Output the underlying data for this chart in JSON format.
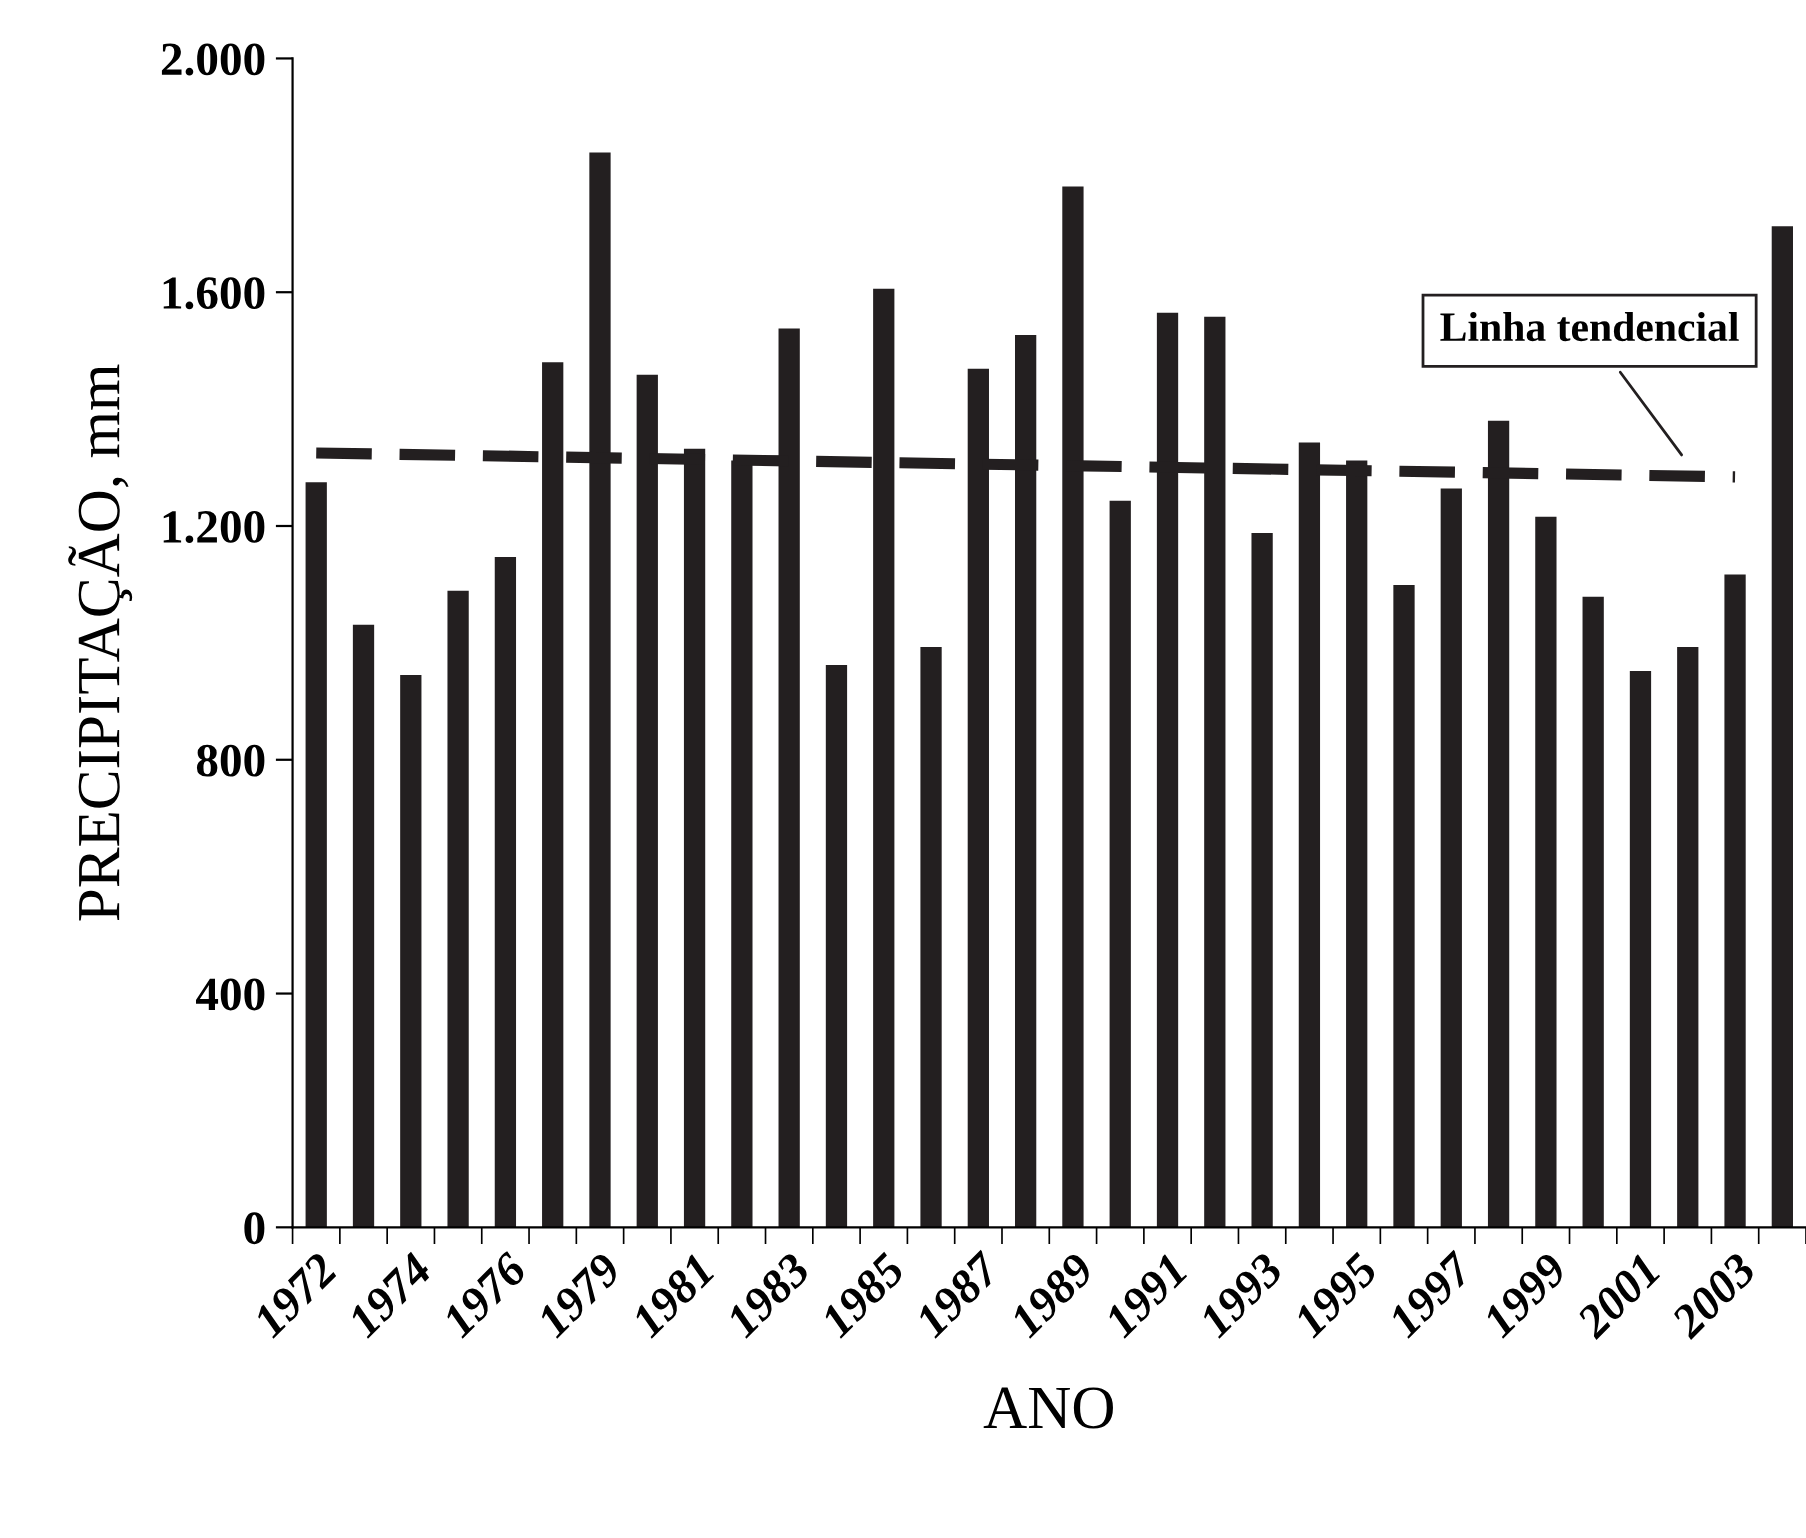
{
  "chart_data": {
    "type": "bar",
    "xlabel": "ANO",
    "ylabel": "PRECIPITAÇÃO, mm",
    "categories": [
      "1972",
      null,
      "1974",
      null,
      "1976",
      null,
      "1979",
      null,
      "1981",
      null,
      "1983",
      null,
      "1985",
      null,
      "1987",
      null,
      "1989",
      null,
      "1991",
      null,
      "1993",
      null,
      "1995",
      null,
      "1997",
      null,
      "1999",
      null,
      "2001",
      null,
      "2003",
      null
    ],
    "series": [
      {
        "color": "#231f20",
        "values": [
          1275,
          1031,
          945,
          1089,
          1147,
          1480,
          1839,
          1459,
          1332,
          1312,
          1538,
          962,
          1606,
          993,
          1469,
          1527,
          1781,
          1243,
          1565,
          1558,
          1188,
          1343,
          1312,
          1099,
          1264,
          1380,
          1216,
          1079,
          952,
          993,
          1117,
          1713
        ]
      },
      {
        "type": "line",
        "color": "#231f20",
        "line_style": "dashed",
        "values": [
          1325,
          null,
          null,
          null,
          null,
          null,
          null,
          null,
          null,
          null,
          null,
          null,
          null,
          null,
          null,
          null,
          null,
          null,
          null,
          null,
          null,
          null,
          null,
          null,
          null,
          null,
          null,
          null,
          null,
          null,
          1284,
          null
        ]
      }
    ],
    "ylim": [
      0,
      2000
    ],
    "yticks": [
      0,
      {
        "value": 400,
        "label": "400"
      },
      {
        "value": 800,
        "label": "800"
      },
      {
        "value": 1200,
        "label": "1.200"
      },
      {
        "value": 1600,
        "label": "1.600"
      },
      {
        "value": 2000,
        "label": "2.000"
      }
    ],
    "annotations": [
      "Linha tendencial"
    ],
    "grid": false,
    "legend": false
  }
}
